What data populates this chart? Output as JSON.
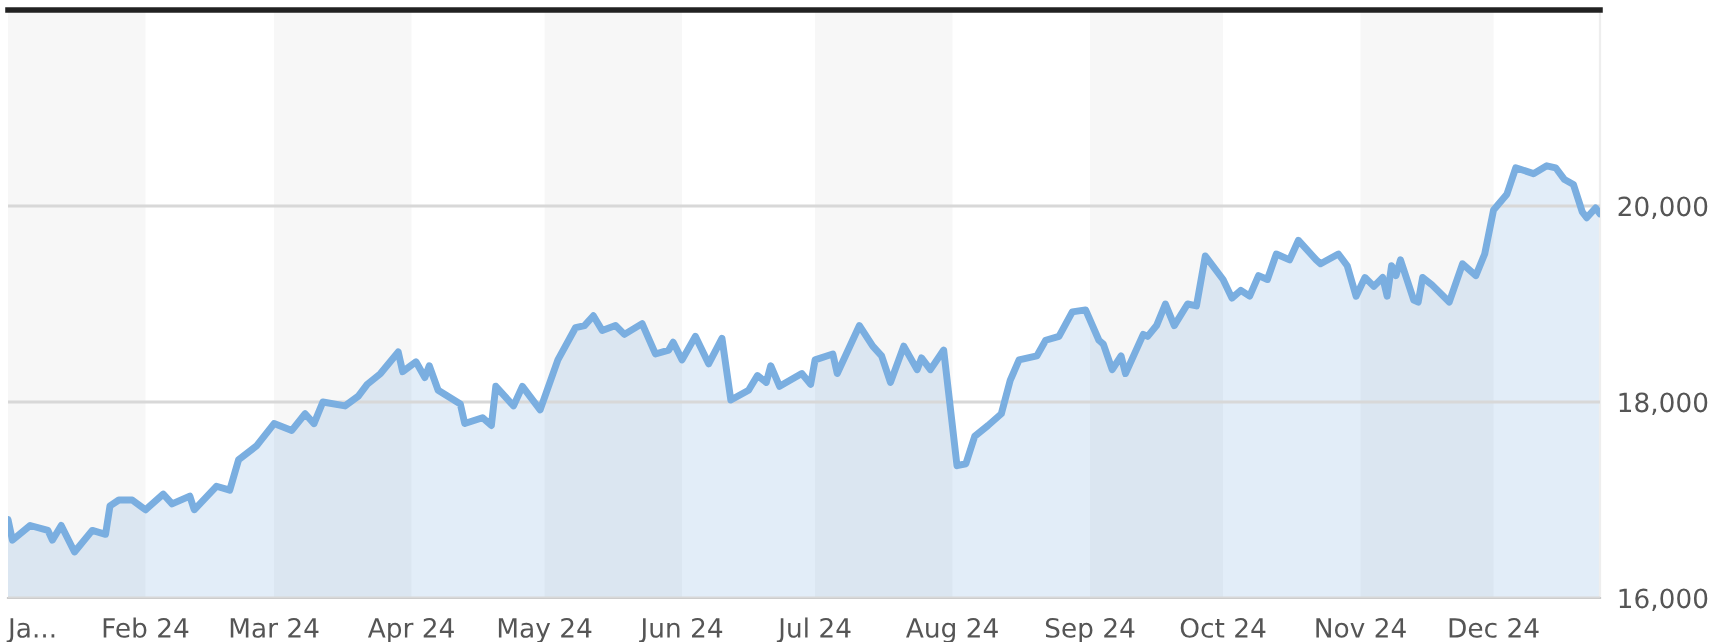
{
  "chart_data": {
    "type": "area",
    "x": [
      "2024-01-01",
      "2024-01-02",
      "2024-01-06",
      "2024-01-10",
      "2024-01-11",
      "2024-01-13",
      "2024-01-16",
      "2024-01-20",
      "2024-01-23",
      "2024-01-24",
      "2024-01-26",
      "2024-01-29",
      "2024-02-01",
      "2024-02-05",
      "2024-02-07",
      "2024-02-11",
      "2024-02-12",
      "2024-02-17",
      "2024-02-20",
      "2024-02-22",
      "2024-02-26",
      "2024-03-01",
      "2024-03-05",
      "2024-03-08",
      "2024-03-10",
      "2024-03-12",
      "2024-03-17",
      "2024-03-20",
      "2024-03-22",
      "2024-03-25",
      "2024-03-29",
      "2024-03-30",
      "2024-04-02",
      "2024-04-04",
      "2024-04-05",
      "2024-04-07",
      "2024-04-12",
      "2024-04-13",
      "2024-04-17",
      "2024-04-19",
      "2024-04-20",
      "2024-04-22",
      "2024-04-24",
      "2024-04-26",
      "2024-04-30",
      "2024-05-04",
      "2024-05-08",
      "2024-05-10",
      "2024-05-12",
      "2024-05-14",
      "2024-05-17",
      "2024-05-19",
      "2024-05-23",
      "2024-05-26",
      "2024-05-29",
      "2024-05-30",
      "2024-06-01",
      "2024-06-04",
      "2024-06-07",
      "2024-06-10",
      "2024-06-12",
      "2024-06-16",
      "2024-06-18",
      "2024-06-20",
      "2024-06-21",
      "2024-06-23",
      "2024-06-28",
      "2024-06-30",
      "2024-07-01",
      "2024-07-05",
      "2024-07-06",
      "2024-07-11",
      "2024-07-14",
      "2024-07-16",
      "2024-07-18",
      "2024-07-21",
      "2024-07-24",
      "2024-07-25",
      "2024-07-27",
      "2024-07-30",
      "2024-08-02",
      "2024-08-04",
      "2024-08-06",
      "2024-08-09",
      "2024-08-12",
      "2024-08-14",
      "2024-08-16",
      "2024-08-20",
      "2024-08-22",
      "2024-08-25",
      "2024-08-28",
      "2024-08-31",
      "2024-09-03",
      "2024-09-04",
      "2024-09-06",
      "2024-09-08",
      "2024-09-09",
      "2024-09-13",
      "2024-09-14",
      "2024-09-16",
      "2024-09-18",
      "2024-09-20",
      "2024-09-23",
      "2024-09-25",
      "2024-09-27",
      "2024-10-01",
      "2024-10-03",
      "2024-10-05",
      "2024-10-07",
      "2024-10-09",
      "2024-10-11",
      "2024-10-13",
      "2024-10-16",
      "2024-10-18",
      "2024-10-22",
      "2024-10-23",
      "2024-10-27",
      "2024-10-29",
      "2024-10-31",
      "2024-11-02",
      "2024-11-04",
      "2024-11-06",
      "2024-11-07",
      "2024-11-08",
      "2024-11-09",
      "2024-11-10",
      "2024-11-13",
      "2024-11-14",
      "2024-11-15",
      "2024-11-17",
      "2024-11-21",
      "2024-11-24",
      "2024-11-27",
      "2024-11-29",
      "2024-12-01",
      "2024-12-04",
      "2024-12-06",
      "2024-12-10",
      "2024-12-13",
      "2024-12-15",
      "2024-12-17",
      "2024-12-19",
      "2024-12-21",
      "2024-12-22",
      "2024-12-24",
      "2024-12-25"
    ],
    "series": [
      {
        "color": "#7aaee0",
        "values": [
          16800,
          16590,
          16740,
          16690,
          16590,
          16740,
          16470,
          16690,
          16650,
          16940,
          17000,
          17000,
          16900,
          17060,
          16960,
          17040,
          16900,
          17140,
          17100,
          17410,
          17550,
          17780,
          17710,
          17880,
          17780,
          18000,
          17960,
          18060,
          18180,
          18290,
          18510,
          18310,
          18410,
          18250,
          18370,
          18120,
          17980,
          17780,
          17840,
          17760,
          18160,
          18060,
          17960,
          18160,
          17920,
          18430,
          18760,
          18780,
          18880,
          18730,
          18780,
          18690,
          18800,
          18490,
          18530,
          18610,
          18430,
          18670,
          18390,
          18650,
          18020,
          18120,
          18270,
          18200,
          18370,
          18160,
          18290,
          18180,
          18430,
          18490,
          18290,
          18780,
          18570,
          18470,
          18200,
          18570,
          18330,
          18450,
          18330,
          18530,
          17350,
          17370,
          17650,
          17760,
          17880,
          18220,
          18430,
          18470,
          18630,
          18670,
          18920,
          18940,
          18630,
          18590,
          18330,
          18470,
          18290,
          18690,
          18670,
          18780,
          19000,
          18780,
          19000,
          18980,
          19490,
          19250,
          19060,
          19140,
          19080,
          19290,
          19250,
          19510,
          19450,
          19650,
          19450,
          19410,
          19510,
          19390,
          19080,
          19270,
          19180,
          19270,
          19080,
          19390,
          19290,
          19450,
          19040,
          19020,
          19270,
          19200,
          19020,
          19410,
          19290,
          19510,
          19960,
          20120,
          20390,
          20330,
          20410,
          20390,
          20270,
          20220,
          19940,
          19880,
          19980,
          19920
        ]
      }
    ],
    "xlim": [
      "2024-01-01",
      "2024-12-25"
    ],
    "xticks": [
      {
        "value": "2024-01-01",
        "label": "Ja..."
      },
      {
        "value": "2024-02-01",
        "label": "Feb 24"
      },
      {
        "value": "2024-03-01",
        "label": "Mar 24"
      },
      {
        "value": "2024-04-01",
        "label": "Apr 24"
      },
      {
        "value": "2024-05-01",
        "label": "May 24"
      },
      {
        "value": "2024-06-01",
        "label": "Jun 24"
      },
      {
        "value": "2024-07-01",
        "label": "Jul 24"
      },
      {
        "value": "2024-08-01",
        "label": "Aug 24"
      },
      {
        "value": "2024-09-01",
        "label": "Sep 24"
      },
      {
        "value": "2024-10-01",
        "label": "Oct 24"
      },
      {
        "value": "2024-11-01",
        "label": "Nov 24"
      },
      {
        "value": "2024-12-01",
        "label": "Dec 24"
      }
    ],
    "ylim": [
      16000,
      22000
    ],
    "yticks": [
      {
        "value": 16000,
        "label": "16,000"
      },
      {
        "value": 18000,
        "label": "18,000"
      },
      {
        "value": 20000,
        "label": "20,000"
      }
    ],
    "grid": "y",
    "bands": [
      {
        "axis": "x",
        "from": "2024-01-01",
        "to": "2024-02-01",
        "color": "#f7f7f7"
      },
      {
        "axis": "x",
        "from": "2024-03-01",
        "to": "2024-04-01",
        "color": "#f7f7f7"
      },
      {
        "axis": "x",
        "from": "2024-05-01",
        "to": "2024-06-01",
        "color": "#f7f7f7"
      },
      {
        "axis": "x",
        "from": "2024-07-01",
        "to": "2024-08-01",
        "color": "#f7f7f7"
      },
      {
        "axis": "x",
        "from": "2024-09-01",
        "to": "2024-10-01",
        "color": "#f7f7f7"
      },
      {
        "axis": "x",
        "from": "2024-11-01",
        "to": "2024-12-01",
        "color": "#f7f7f7"
      }
    ]
  }
}
